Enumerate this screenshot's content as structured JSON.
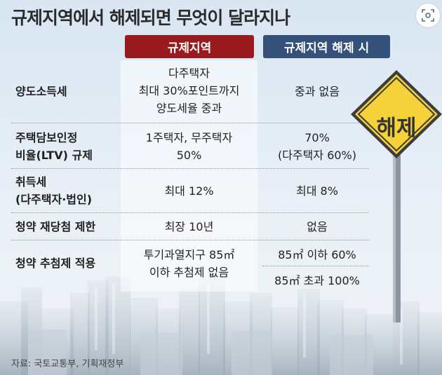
{
  "title": "규제지역에서 해제되면 무엇이 달라지나",
  "headers": {
    "regulated": "규제지역",
    "released": "규제지역 해제 시"
  },
  "rows": [
    {
      "label": [
        "양도소득세"
      ],
      "regulated": [
        "다주택자",
        "최대 30%포인트까지",
        "양도세율 중과"
      ],
      "released": [
        "중과 없음"
      ]
    },
    {
      "label": [
        "주택담보인정",
        "비율(LTV) 규제"
      ],
      "regulated": [
        "1주택자, 무주택자",
        "50%"
      ],
      "released": [
        "70%",
        "(다주택자 60%)"
      ]
    },
    {
      "label": [
        "취득세",
        "(다주택자·법인)"
      ],
      "regulated": [
        "최대 12%"
      ],
      "released": [
        "최대 8%"
      ]
    },
    {
      "label": [
        "청약 재당첨 제한"
      ],
      "regulated": [
        "최장 10년"
      ],
      "released": [
        "없음"
      ]
    },
    {
      "label": [
        "청약 추첨제 적용"
      ],
      "regulated": [
        "투기과열지구 85㎡",
        "이하 추첨제 없음"
      ],
      "released": [
        "85㎡ 이하 60%",
        "85㎡ 초과 100%"
      ]
    }
  ],
  "sign": {
    "text": "해제"
  },
  "source": "자료: 국토교통부, 기획재정부",
  "colors": {
    "regulated": "#9a1b1f",
    "released": "#33517a",
    "sign": "#f6d23a"
  },
  "icons": {
    "top_right": "lens-icon"
  }
}
